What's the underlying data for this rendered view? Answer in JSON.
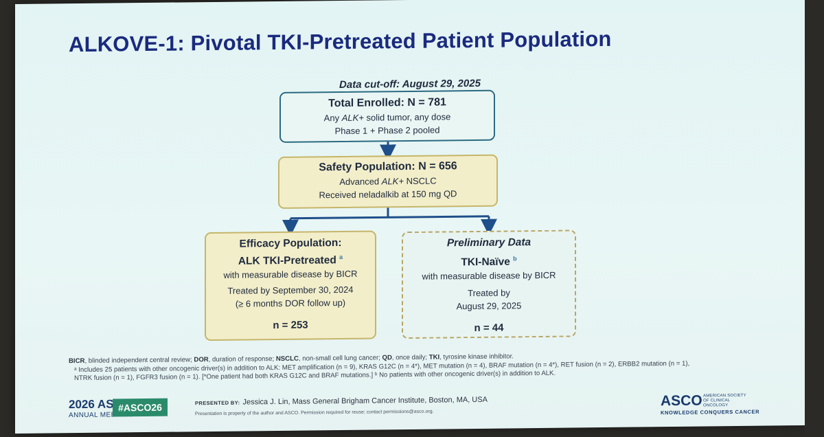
{
  "title": "ALKOVE-1: Pivotal TKI-Pretreated Patient Population",
  "cutoff": "Data cut-off: August 29, 2025",
  "boxes": {
    "total": {
      "head": "Total Enrolled: N = 781",
      "line1_pre": "Any ",
      "line1_it": "ALK+",
      "line1_post": " solid tumor, any dose",
      "line2": "Phase 1 + Phase 2 pooled"
    },
    "safety": {
      "head": "Safety Population: N = 656",
      "line1_pre": "Advanced ",
      "line1_it": "ALK+",
      "line1_post": " NSCLC",
      "line2": "Received neladalkib at 150 mg QD"
    },
    "efficacy": {
      "head1": "Efficacy Population:",
      "head2": "ALK TKI-Pretreated ",
      "sup": "a",
      "line1": "with measurable disease by BICR",
      "line2": "Treated by September 30, 2024",
      "line3": "(≥ 6 months DOR follow up)",
      "n": "n = 253"
    },
    "prelim": {
      "head1": "Preliminary Data",
      "head2": "TKI-Naïve ",
      "sup": "b",
      "line1": "with measurable disease by BICR",
      "line2": "Treated by",
      "line3": "August 29, 2025",
      "n": "n = 44"
    }
  },
  "footnotes": {
    "abbr": [
      {
        "term": "BICR",
        "def": ", blinded independent central review; "
      },
      {
        "term": "DOR",
        "def": ", duration of response; "
      },
      {
        "term": "NSCLC",
        "def": ", non-small cell lung cancer; "
      },
      {
        "term": "QD",
        "def": ", once daily; "
      },
      {
        "term": "TKI",
        "def": ", tyrosine kinase inhibitor."
      }
    ],
    "note_a_1": "ᵃ Includes 25 patients with other oncogenic driver(s) in addition to ALK: MET amplification (n = 9), KRAS G12C (n = 4*), MET mutation (n = 4), BRAF mutation (n = 4*), RET fusion (n = 2), ERBB2 mutation (n = 1),",
    "note_a_2": "NTRK fusion (n = 1), FGFR3 fusion (n = 1). [*One patient had both KRAS G12C and BRAF mutations.] ᵇ No patients with other oncogenic driver(s) in addition to ALK."
  },
  "footer": {
    "meeting_year": "2026 ASCO",
    "meeting_sub": "ANNUAL MEETING",
    "hashtag": "#ASCO26",
    "presented_label": "PRESENTED BY:",
    "presenter": "Jessica J. Lin, Mass General Brigham Cancer Institute, Boston, MA, USA",
    "property": "Presentation is property of the author and ASCO. Permission required for reuse; contact permissions@asco.org.",
    "logo": "ASCO",
    "society": "AMERICAN SOCIETY OF CLINICAL ONCOLOGY",
    "tagline": "KNOWLEDGE CONQUERS CANCER"
  },
  "colors": {
    "title": "#1a2a7e",
    "arrow": "#1f4f8a",
    "box_blue_border": "#2c6a82",
    "box_yellow_fill": "#f2eeca",
    "box_yellow_border": "#c6b56a",
    "hashtag_bg": "#2a8b6a"
  }
}
